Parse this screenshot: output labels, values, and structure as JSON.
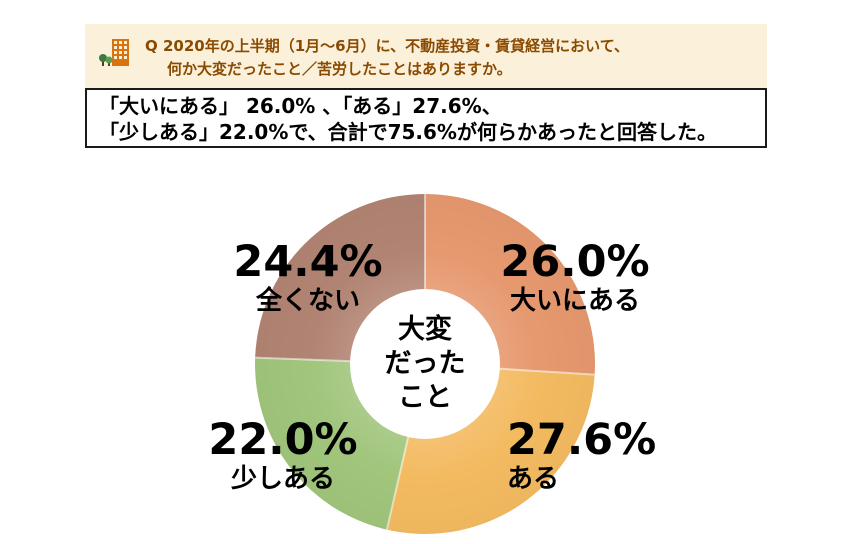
{
  "theme": {
    "page_bg": "#FFFFFF",
    "question_bg": "#FBF0DA",
    "question_text": "#8A4A00",
    "summary_border": "#1A1A1A"
  },
  "question": {
    "line1": "Q 2020年の上半期（1月～6月）に、不動産投資・賃貸経営において、",
    "line2": "何か大変だったこと／苦労したことはありますか。"
  },
  "summary": {
    "line1": "「大いにある」 26.0% 、「ある」27.6%、",
    "line2": "「少しある」22.0%で、合計で75.6%が何らかあったと回答した。"
  },
  "chart_data": {
    "type": "pie",
    "donut": true,
    "title": "大変だったこと",
    "center_label_lines": [
      "大変",
      "だった",
      "こと"
    ],
    "start_angle_deg": 0,
    "direction": "clockwise",
    "unit": "%",
    "total_with_issue_pct": 75.6,
    "segments": [
      {
        "label": "大いにある",
        "value": 26.0,
        "pct_label": "26.0%",
        "color": "#E6986E",
        "position": "top-right"
      },
      {
        "label": "ある",
        "value": 27.6,
        "pct_label": "27.6%",
        "color": "#F3BA60",
        "position": "bottom-right"
      },
      {
        "label": "少しある",
        "value": 22.0,
        "pct_label": "22.0%",
        "color": "#A0C57B",
        "position": "bottom-left"
      },
      {
        "label": "全くない",
        "value": 24.4,
        "pct_label": "24.4%",
        "color": "#B18372",
        "position": "top-left"
      }
    ]
  }
}
